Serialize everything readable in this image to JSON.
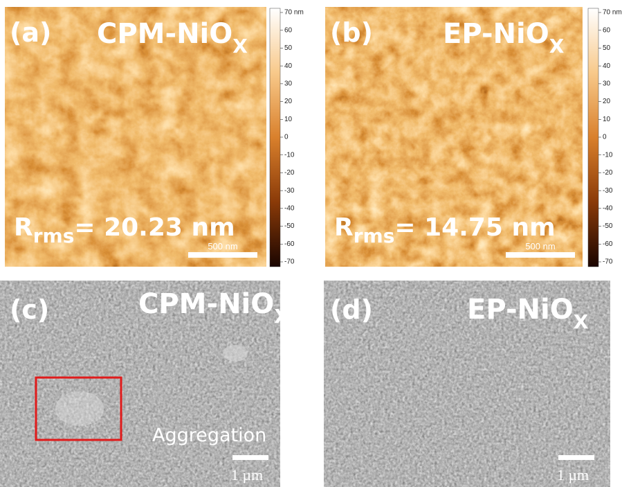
{
  "panels": [
    {
      "label": "(a)",
      "title": {
        "main": "CPM-NiO",
        "sub": "X"
      },
      "roughness": {
        "symbol": "R",
        "sub": "rms",
        "value": "= 20.23 nm"
      },
      "scale_bar": "500 nm",
      "colorbar": {
        "ticks": [
          "70 nm",
          "60",
          "50",
          "40",
          "30",
          "20",
          "10",
          "0",
          "-10",
          "-20",
          "-30",
          "-40",
          "-50",
          "-60",
          "-70"
        ]
      }
    },
    {
      "label": "(b)",
      "title": {
        "main": "EP-NiO",
        "sub": "X"
      },
      "roughness": {
        "symbol": "R",
        "sub": "rms",
        "value": "= 14.75 nm"
      },
      "scale_bar": "500 nm",
      "colorbar": {
        "ticks": [
          "70 nm",
          "60",
          "50",
          "40",
          "30",
          "20",
          "10",
          "0",
          "-10",
          "-20",
          "-30",
          "-40",
          "-50",
          "-60",
          "-70"
        ]
      }
    },
    {
      "label": "(c)",
      "title": {
        "main": "CPM-NiO",
        "sub": "X"
      },
      "annotation": "Aggregation",
      "scale_bar": "1 µm"
    },
    {
      "label": "(d)",
      "title": {
        "main": "EP-NiO",
        "sub": "X"
      },
      "scale_bar": "1 µm"
    }
  ]
}
